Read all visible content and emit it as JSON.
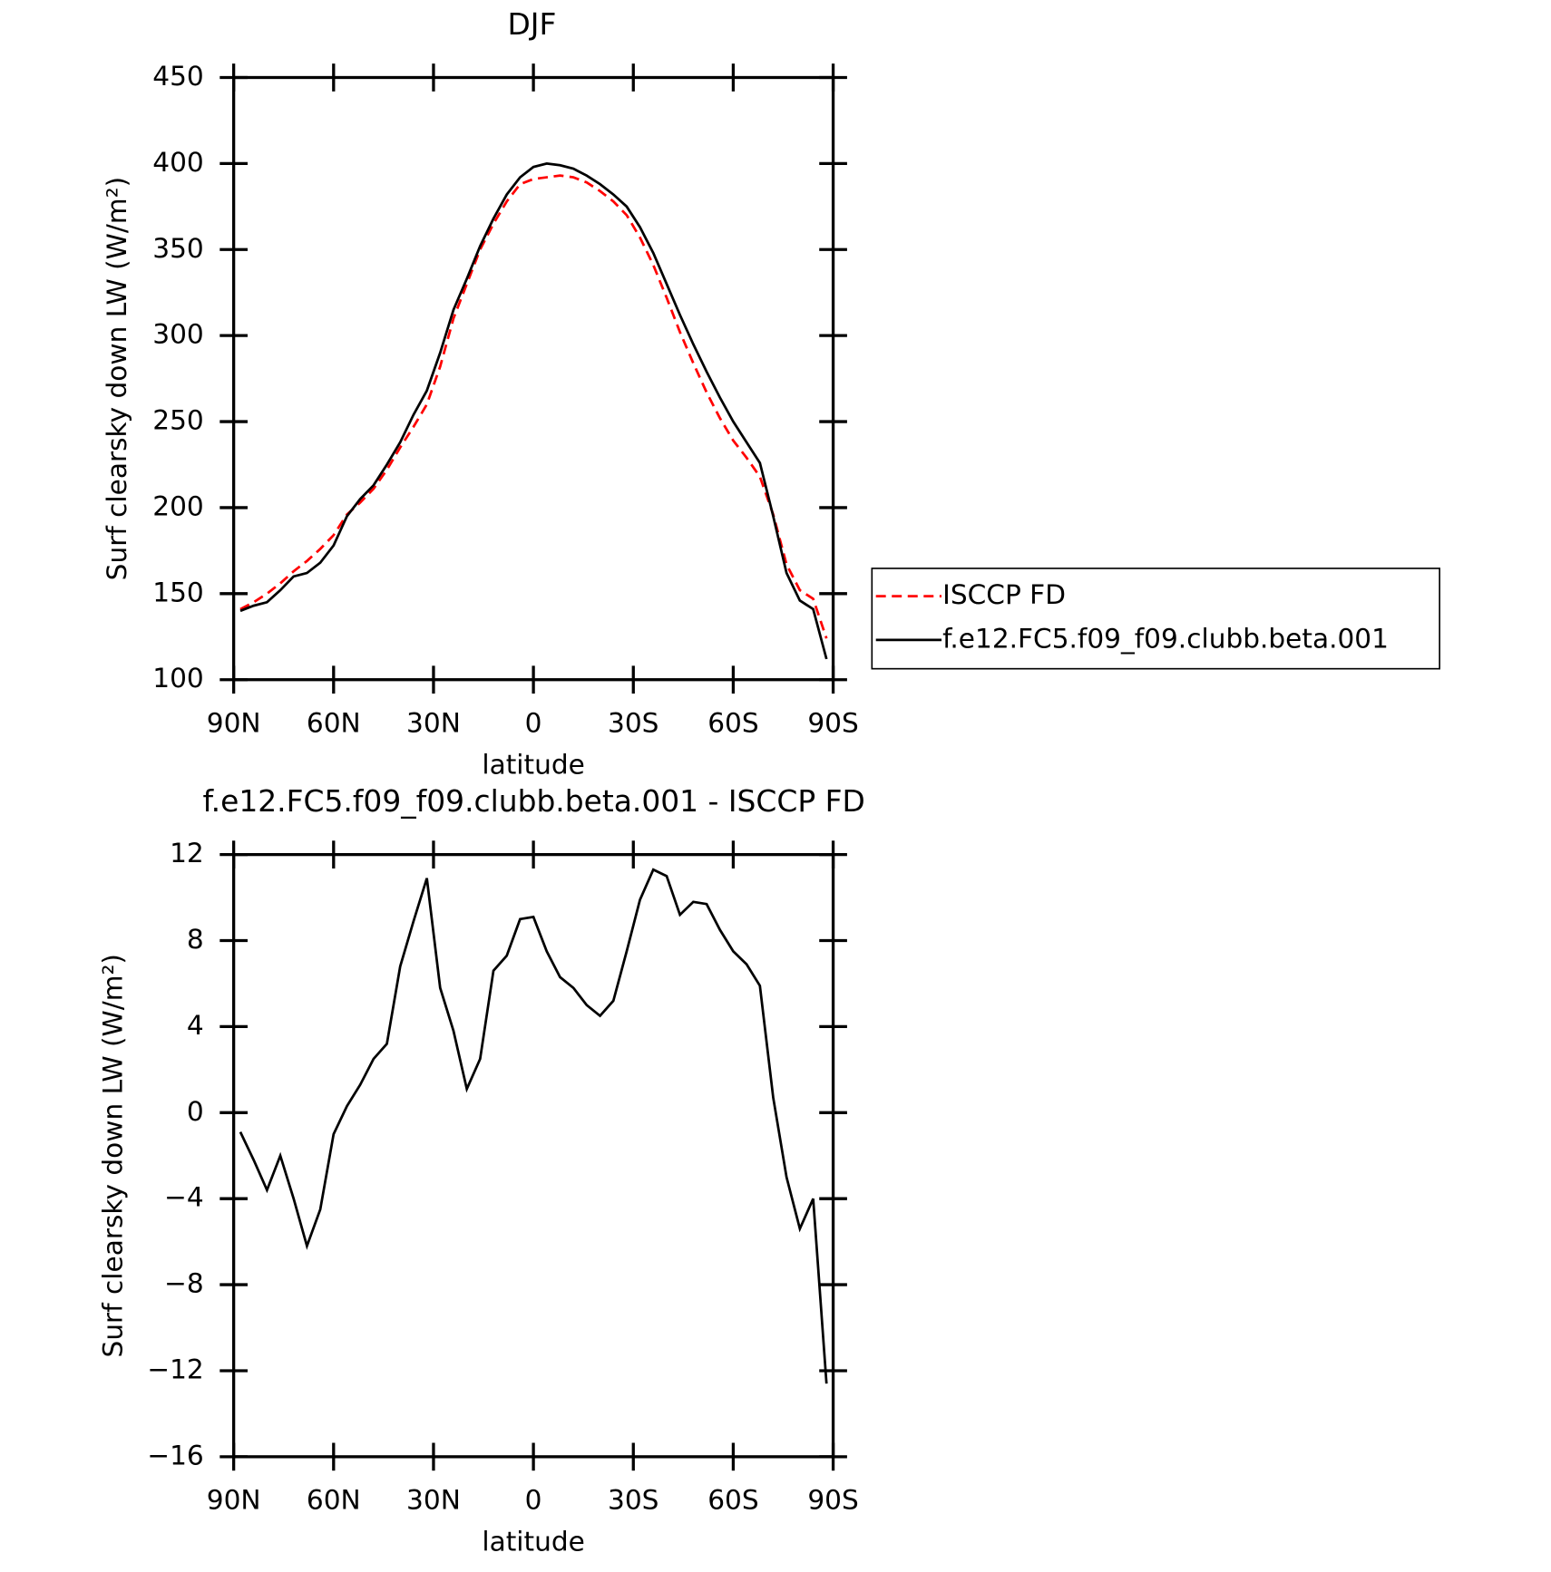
{
  "chart_data": [
    {
      "type": "line",
      "title": "DJF",
      "xlabel": "latitude",
      "ylabel": "Surf clearsky down LW (W/m²)",
      "x": [
        88,
        84,
        80,
        76,
        72,
        68,
        64,
        60,
        56,
        52,
        48,
        44,
        40,
        36,
        32,
        28,
        24,
        20,
        16,
        12,
        8,
        4,
        0,
        -4,
        -8,
        -12,
        -16,
        -20,
        -24,
        -28,
        -32,
        -36,
        -40,
        -44,
        -48,
        -52,
        -56,
        -60,
        -64,
        -68,
        -72,
        -76,
        -80,
        -84,
        -88
      ],
      "series": [
        {
          "name": "ISCCP FD",
          "color": "#ff0000",
          "dash": true,
          "values": [
            141,
            145,
            150,
            156,
            163,
            169,
            176,
            184,
            196,
            203,
            211,
            222,
            235,
            247,
            260,
            282,
            310,
            330,
            350,
            365,
            378,
            388,
            391,
            392,
            393,
            392,
            389,
            384,
            378,
            370,
            357,
            341,
            322,
            302,
            284,
            267,
            252,
            239,
            229,
            218,
            196,
            167,
            152,
            147,
            124
          ]
        },
        {
          "name": "f.e12.FC5.f09_f09.clubb.beta.001",
          "color": "#000000",
          "dash": false,
          "values": [
            140,
            143,
            145,
            152,
            160,
            162,
            168,
            178,
            195,
            205,
            213,
            225,
            238,
            254,
            268,
            290,
            315,
            333,
            352,
            368,
            382,
            392,
            398,
            400,
            399,
            397,
            393,
            388,
            382,
            375,
            363,
            348,
            330,
            312,
            295,
            279,
            264,
            250,
            238,
            226,
            195,
            162,
            146,
            141,
            112
          ]
        }
      ],
      "xlim": [
        90,
        -90
      ],
      "xticks": [
        {
          "value": 90,
          "label": "90N"
        },
        {
          "value": 60,
          "label": "60N"
        },
        {
          "value": 30,
          "label": "30N"
        },
        0,
        {
          "value": -30,
          "label": "30S"
        },
        {
          "value": -60,
          "label": "60S"
        },
        {
          "value": -90,
          "label": "90S"
        }
      ],
      "ylim": [
        100,
        450
      ],
      "yticks": [
        100,
        150,
        200,
        250,
        300,
        350,
        400,
        450
      ],
      "legend": "right"
    },
    {
      "type": "line",
      "title": "f.e12.FC5.f09_f09.clubb.beta.001 - ISCCP FD",
      "xlabel": "latitude",
      "ylabel": "Surf clearsky down LW (W/m²)",
      "x": [
        88,
        84,
        80,
        76,
        72,
        68,
        64,
        60,
        56,
        52,
        48,
        44,
        40,
        36,
        32,
        28,
        24,
        20,
        16,
        12,
        8,
        4,
        0,
        -4,
        -8,
        -12,
        -16,
        -20,
        -24,
        -28,
        -32,
        -36,
        -40,
        -44,
        -48,
        -52,
        -56,
        -60,
        -64,
        -68,
        -72,
        -76,
        -80,
        -84,
        -88
      ],
      "series": [
        {
          "color": "#000000",
          "dash": false,
          "values": [
            -0.9,
            -2.2,
            -3.6,
            -2,
            -4,
            -6.2,
            -4.5,
            -1,
            0.3,
            1.3,
            2.5,
            3.2,
            6.8,
            8.9,
            10.9,
            5.8,
            3.8,
            1.1,
            2.5,
            6.6,
            7.3,
            9,
            9.1,
            7.5,
            6.3,
            5.8,
            5.0,
            4.5,
            5.2,
            7.5,
            9.9,
            11.3,
            11.0,
            9.2,
            9.8,
            9.7,
            8.5,
            7.5,
            6.9,
            5.9,
            0.7,
            -3,
            -5.4,
            -4,
            -12.6
          ]
        }
      ],
      "xlim": [
        90,
        -90
      ],
      "xticks": [
        {
          "value": 90,
          "label": "90N"
        },
        {
          "value": 60,
          "label": "60N"
        },
        {
          "value": 30,
          "label": "30N"
        },
        0,
        {
          "value": -30,
          "label": "30S"
        },
        {
          "value": -60,
          "label": "60S"
        },
        {
          "value": -90,
          "label": "90S"
        }
      ],
      "ylim": [
        -16,
        12
      ],
      "yticks": [
        {
          "value": -16,
          "label": "−16"
        },
        {
          "value": -12,
          "label": "−12"
        },
        {
          "value": -8,
          "label": "−8"
        },
        {
          "value": -4,
          "label": "−4"
        },
        0,
        4,
        8,
        12
      ]
    }
  ]
}
